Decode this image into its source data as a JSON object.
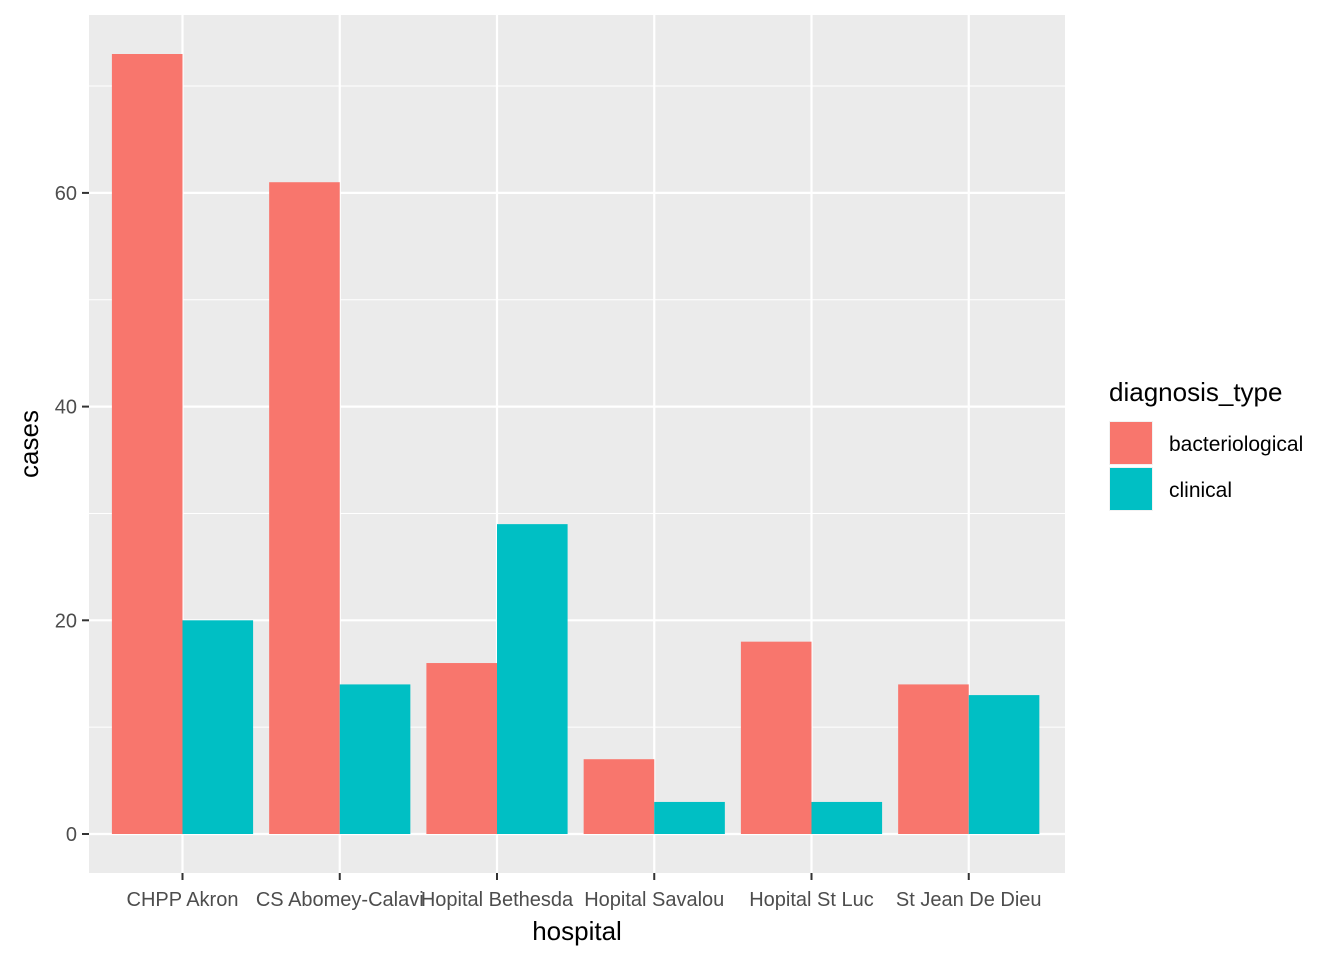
{
  "chart_data": {
    "type": "bar",
    "xlabel": "hospital",
    "ylabel": "cases",
    "categories": [
      "CHPP Akron",
      "CS Abomey-Calavi",
      "Hopital Bethesda",
      "Hopital Savalou",
      "Hopital St Luc",
      "St Jean De Dieu"
    ],
    "series": [
      {
        "name": "bacteriological",
        "color": "#F8766D",
        "values": [
          73,
          61,
          16,
          7,
          18,
          14
        ]
      },
      {
        "name": "clinical",
        "color": "#00BFC4",
        "values": [
          20,
          14,
          29,
          3,
          3,
          13
        ]
      }
    ],
    "ylim": [
      -3.65,
      76.65
    ],
    "yticks": [
      0,
      20,
      40,
      60
    ],
    "grid": true,
    "legend": {
      "title": "diagnosis_type",
      "position": "right"
    },
    "panel_background": "#EBEBEB"
  }
}
